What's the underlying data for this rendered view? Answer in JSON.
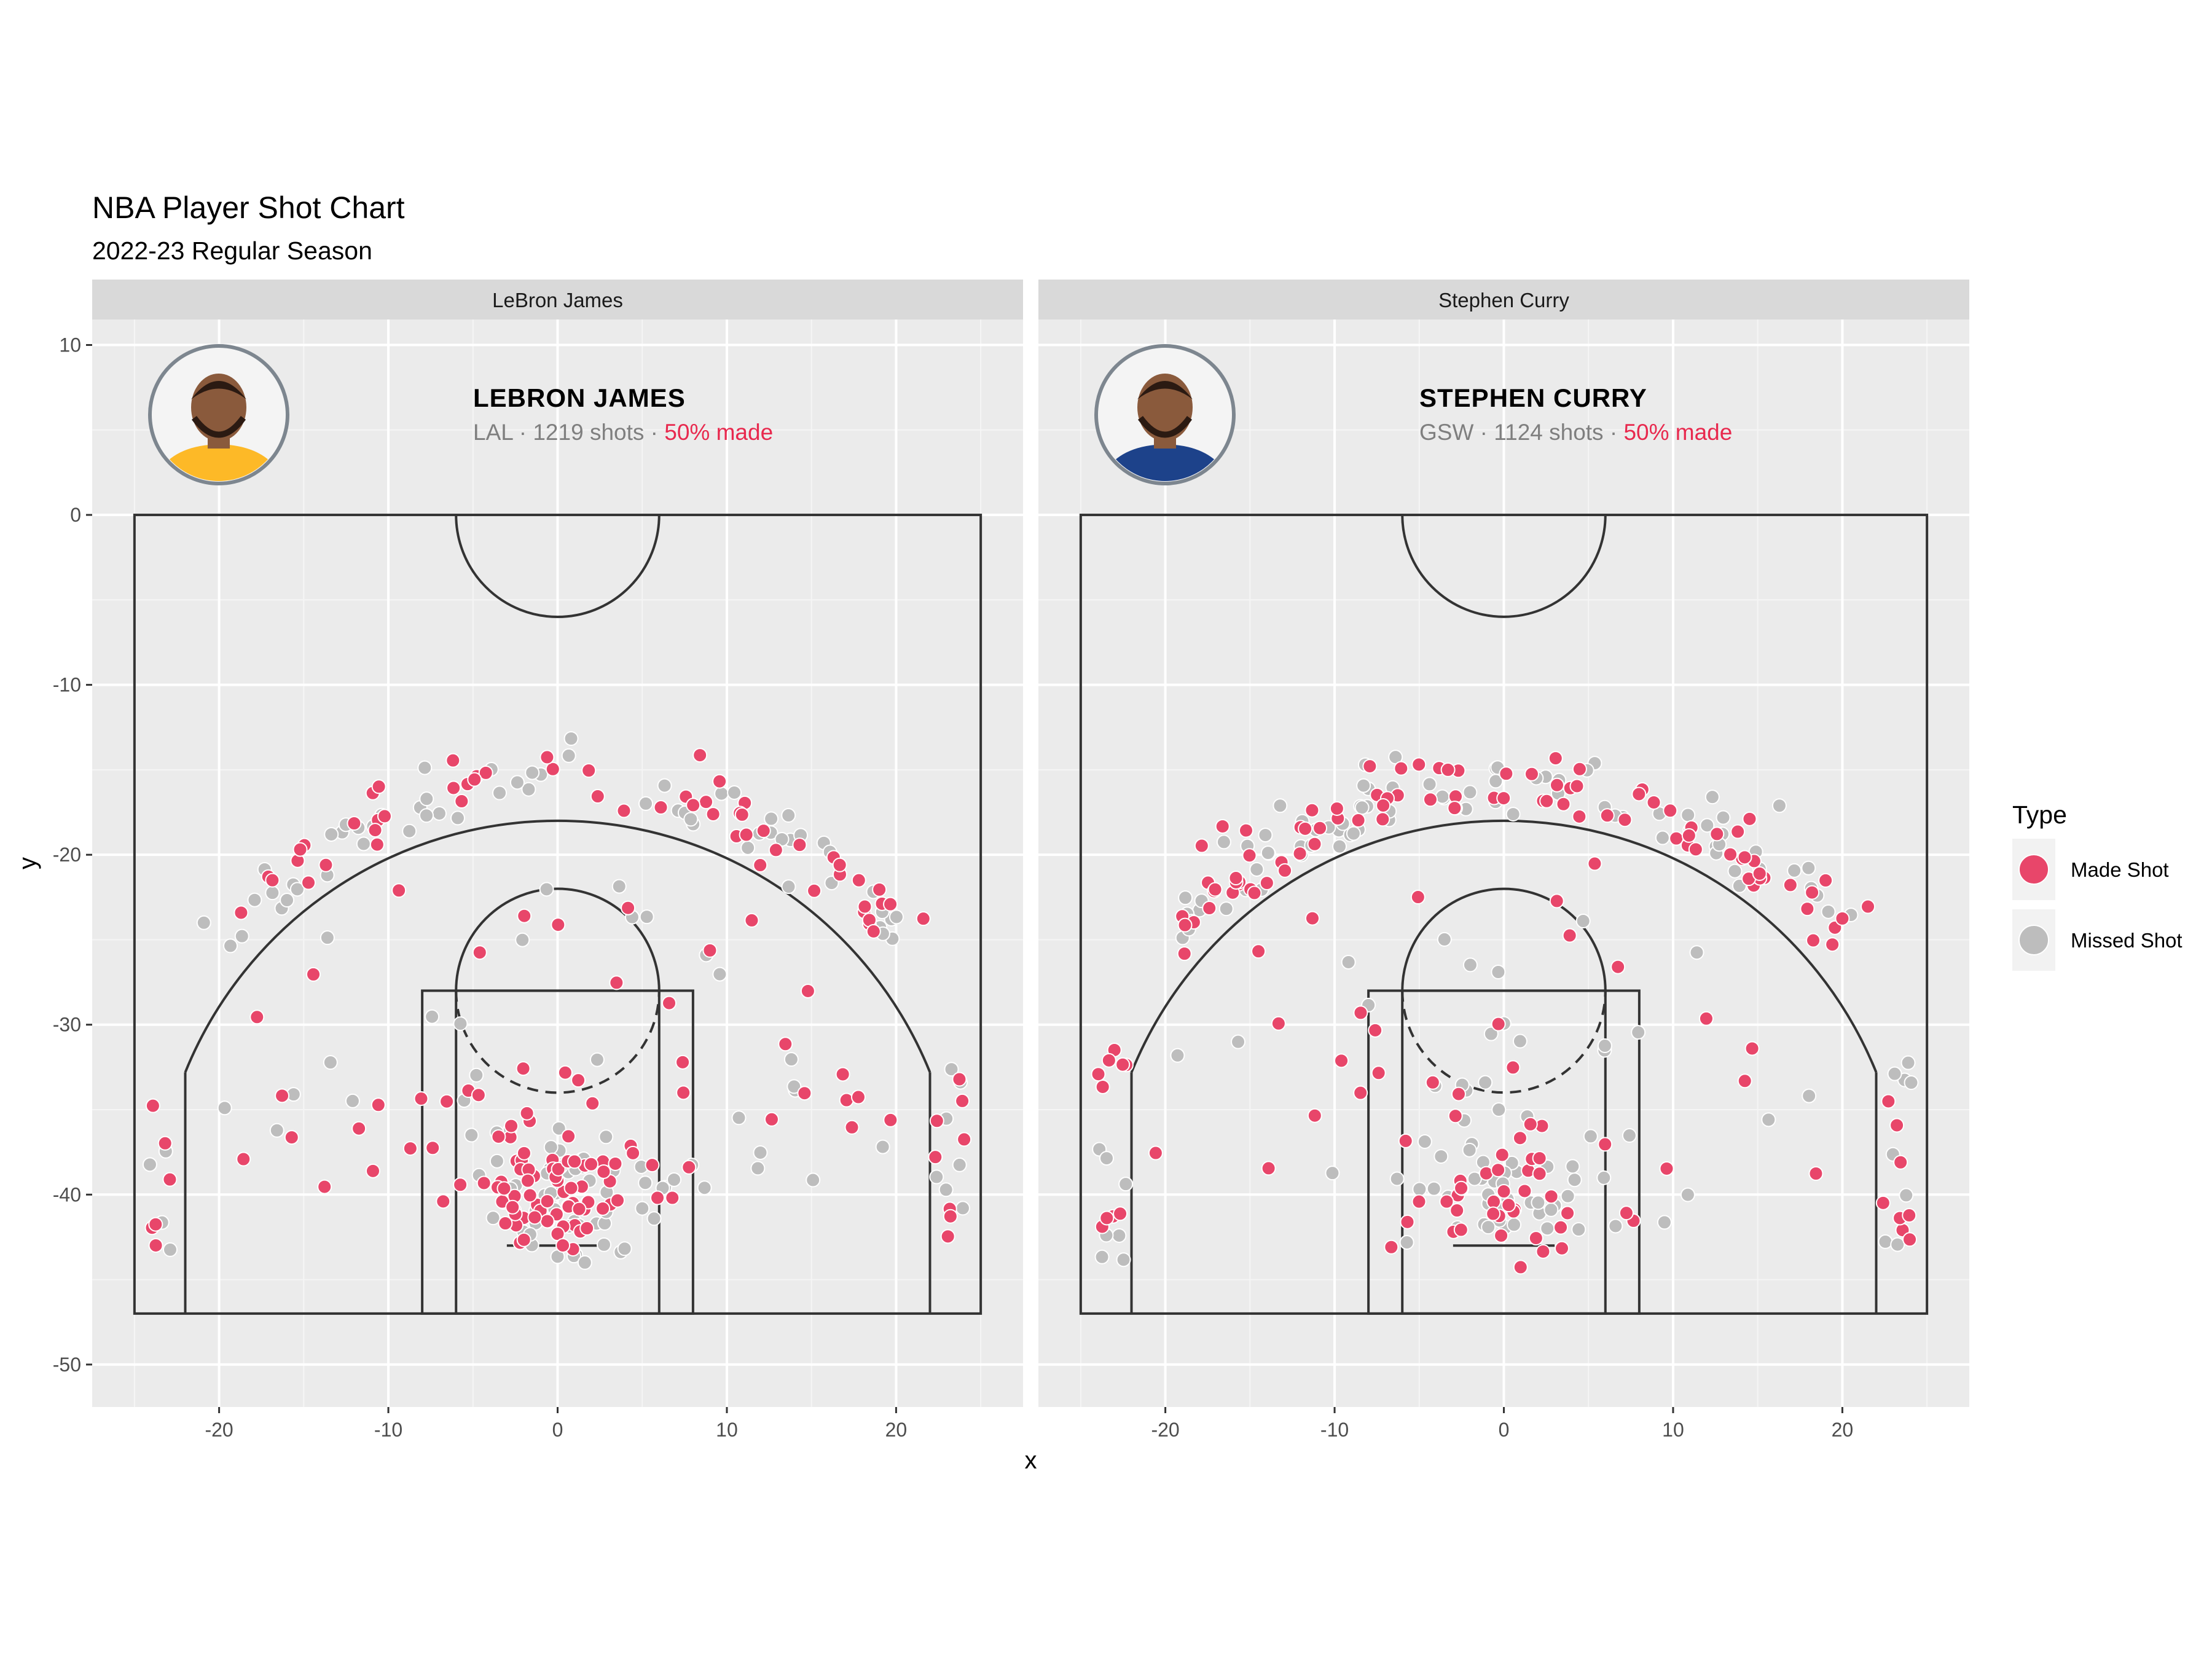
{
  "chart_data": {
    "type": "scatter",
    "title": "NBA Player Shot Chart",
    "subtitle": "2022-23 Regular Season",
    "xlabel": "x",
    "ylabel": "y",
    "xlim": [
      -27.5,
      27.5
    ],
    "ylim": [
      -52.5,
      11.5
    ],
    "x_ticks": [
      -20,
      -10,
      0,
      10,
      20
    ],
    "y_ticks": [
      10,
      0,
      -10,
      -20,
      -30,
      -40,
      -50
    ],
    "grid": true,
    "legend": {
      "title": "Type",
      "position": "right",
      "entries": [
        {
          "label": "Made Shot",
          "color": "#e8466a"
        },
        {
          "label": "Missed Shot",
          "color": "#bdbdbd"
        }
      ]
    },
    "colors": {
      "made": "#e8466a",
      "missed": "#bdbdbd",
      "panel_bg": "#ebebeb",
      "strip_bg": "#d9d9d9",
      "highlight": "#e8294e"
    },
    "panels": [
      {
        "strip": "LeBron James",
        "name": "LEBRON JAMES",
        "team": "LAL",
        "shots_text": "1219 shots",
        "pct_text": "50% made",
        "jersey_color": "#fdb927",
        "total_shots": 1219,
        "made_pct": 50,
        "profile": "lebron",
        "seed": 23
      },
      {
        "strip": "Stephen Curry",
        "name": "STEPHEN CURRY",
        "team": "GSW",
        "shots_text": "1124 shots",
        "pct_text": "50% made",
        "jersey_color": "#1d428a",
        "total_shots": 1124,
        "made_pct": 50,
        "profile": "curry",
        "seed": 30
      }
    ]
  }
}
